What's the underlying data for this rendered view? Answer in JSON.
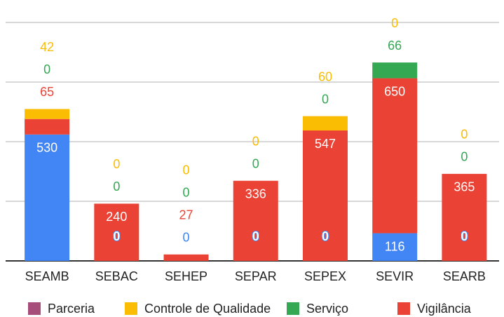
{
  "chart_data": {
    "type": "stacked_bar",
    "categories": [
      "SEAMB",
      "SEBAC",
      "SEHEP",
      "SEPAR",
      "SEPEX",
      "SEVIR",
      "SEARB"
    ],
    "series": [
      {
        "name": "Parceria",
        "color": "#a64d79",
        "values": [
          null,
          null,
          null,
          null,
          null,
          null,
          null
        ]
      },
      {
        "name": "Controle de Qualidade",
        "color": "#fbbc04",
        "values": [
          42,
          0,
          0,
          0,
          60,
          0,
          0
        ]
      },
      {
        "name": "Serviço",
        "color": "#34a853",
        "values": [
          0,
          0,
          0,
          0,
          0,
          66,
          0
        ]
      },
      {
        "name": "Vigilância",
        "color": "#ea4335",
        "values": [
          65,
          240,
          27,
          336,
          547,
          650,
          365
        ]
      },
      {
        "color": "#4285f4",
        "values": [
          530,
          0,
          0,
          0,
          0,
          116,
          0
        ]
      }
    ],
    "ylim": [
      0,
      1000
    ],
    "yticks": [
      0,
      250,
      500,
      750,
      1000
    ],
    "grid": true
  }
}
